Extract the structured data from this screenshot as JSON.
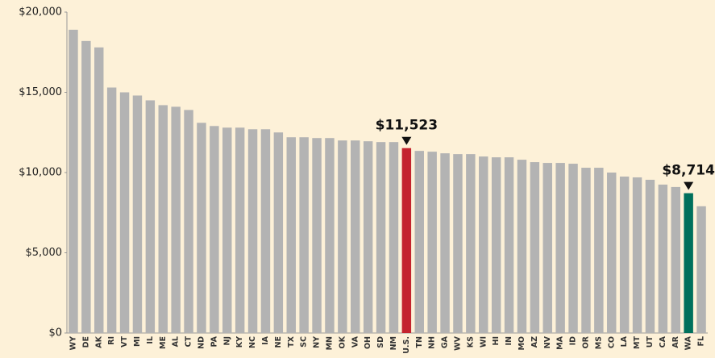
{
  "chart_data": {
    "type": "bar",
    "categories": [
      "WY",
      "DE",
      "AK",
      "RI",
      "VT",
      "MI",
      "IL",
      "ME",
      "AL",
      "CT",
      "ND",
      "PA",
      "NJ",
      "KY",
      "NC",
      "IA",
      "NE",
      "TX",
      "SC",
      "NY",
      "MN",
      "OK",
      "VA",
      "OH",
      "SD",
      "NM",
      "U.S.",
      "TN",
      "NH",
      "GA",
      "WV",
      "KS",
      "WI",
      "HI",
      "IN",
      "MO",
      "AZ",
      "NV",
      "MA",
      "ID",
      "OR",
      "MS",
      "CO",
      "LA",
      "MT",
      "UT",
      "CA",
      "AR",
      "WA",
      "FL"
    ],
    "values": [
      18900,
      18200,
      17800,
      15300,
      15000,
      14800,
      14500,
      14200,
      14100,
      13900,
      13100,
      12900,
      12800,
      12800,
      12700,
      12700,
      12500,
      12200,
      12200,
      12150,
      12150,
      12000,
      12000,
      11950,
      11900,
      11900,
      11523,
      11350,
      11300,
      11200,
      11150,
      11150,
      11000,
      10950,
      10950,
      10800,
      10650,
      10600,
      10600,
      10550,
      10300,
      10300,
      10000,
      9750,
      9700,
      9550,
      9250,
      9100,
      8714,
      7900
    ],
    "value_labels": [
      null,
      null,
      null,
      null,
      null,
      null,
      null,
      null,
      null,
      null,
      null,
      null,
      null,
      null,
      null,
      null,
      null,
      null,
      null,
      null,
      null,
      null,
      null,
      null,
      null,
      null,
      "$11,523",
      null,
      null,
      null,
      null,
      null,
      null,
      null,
      null,
      null,
      null,
      null,
      null,
      null,
      null,
      null,
      null,
      null,
      null,
      null,
      null,
      null,
      "$8,714",
      null
    ],
    "colors": [
      "#b3b3b3",
      "#b3b3b3",
      "#b3b3b3",
      "#b3b3b3",
      "#b3b3b3",
      "#b3b3b3",
      "#b3b3b3",
      "#b3b3b3",
      "#b3b3b3",
      "#b3b3b3",
      "#b3b3b3",
      "#b3b3b3",
      "#b3b3b3",
      "#b3b3b3",
      "#b3b3b3",
      "#b3b3b3",
      "#b3b3b3",
      "#b3b3b3",
      "#b3b3b3",
      "#b3b3b3",
      "#b3b3b3",
      "#b3b3b3",
      "#b3b3b3",
      "#b3b3b3",
      "#b3b3b3",
      "#b3b3b3",
      "#c4232e",
      "#b3b3b3",
      "#b3b3b3",
      "#b3b3b3",
      "#b3b3b3",
      "#b3b3b3",
      "#b3b3b3",
      "#b3b3b3",
      "#b3b3b3",
      "#b3b3b3",
      "#b3b3b3",
      "#b3b3b3",
      "#b3b3b3",
      "#b3b3b3",
      "#b3b3b3",
      "#b3b3b3",
      "#b3b3b3",
      "#b3b3b3",
      "#b3b3b3",
      "#b3b3b3",
      "#b3b3b3",
      "#b3b3b3",
      "#00705c",
      "#b3b3b3"
    ],
    "ylim": [
      0,
      20000
    ],
    "yticks": [
      {
        "value": 0,
        "label": "$0"
      },
      {
        "value": 5000,
        "label": "$5,000"
      },
      {
        "value": 10000,
        "label": "$10,000"
      },
      {
        "value": 15000,
        "label": "$15,000"
      },
      {
        "value": 20000,
        "label": "$20,000"
      }
    ],
    "grid": false
  }
}
